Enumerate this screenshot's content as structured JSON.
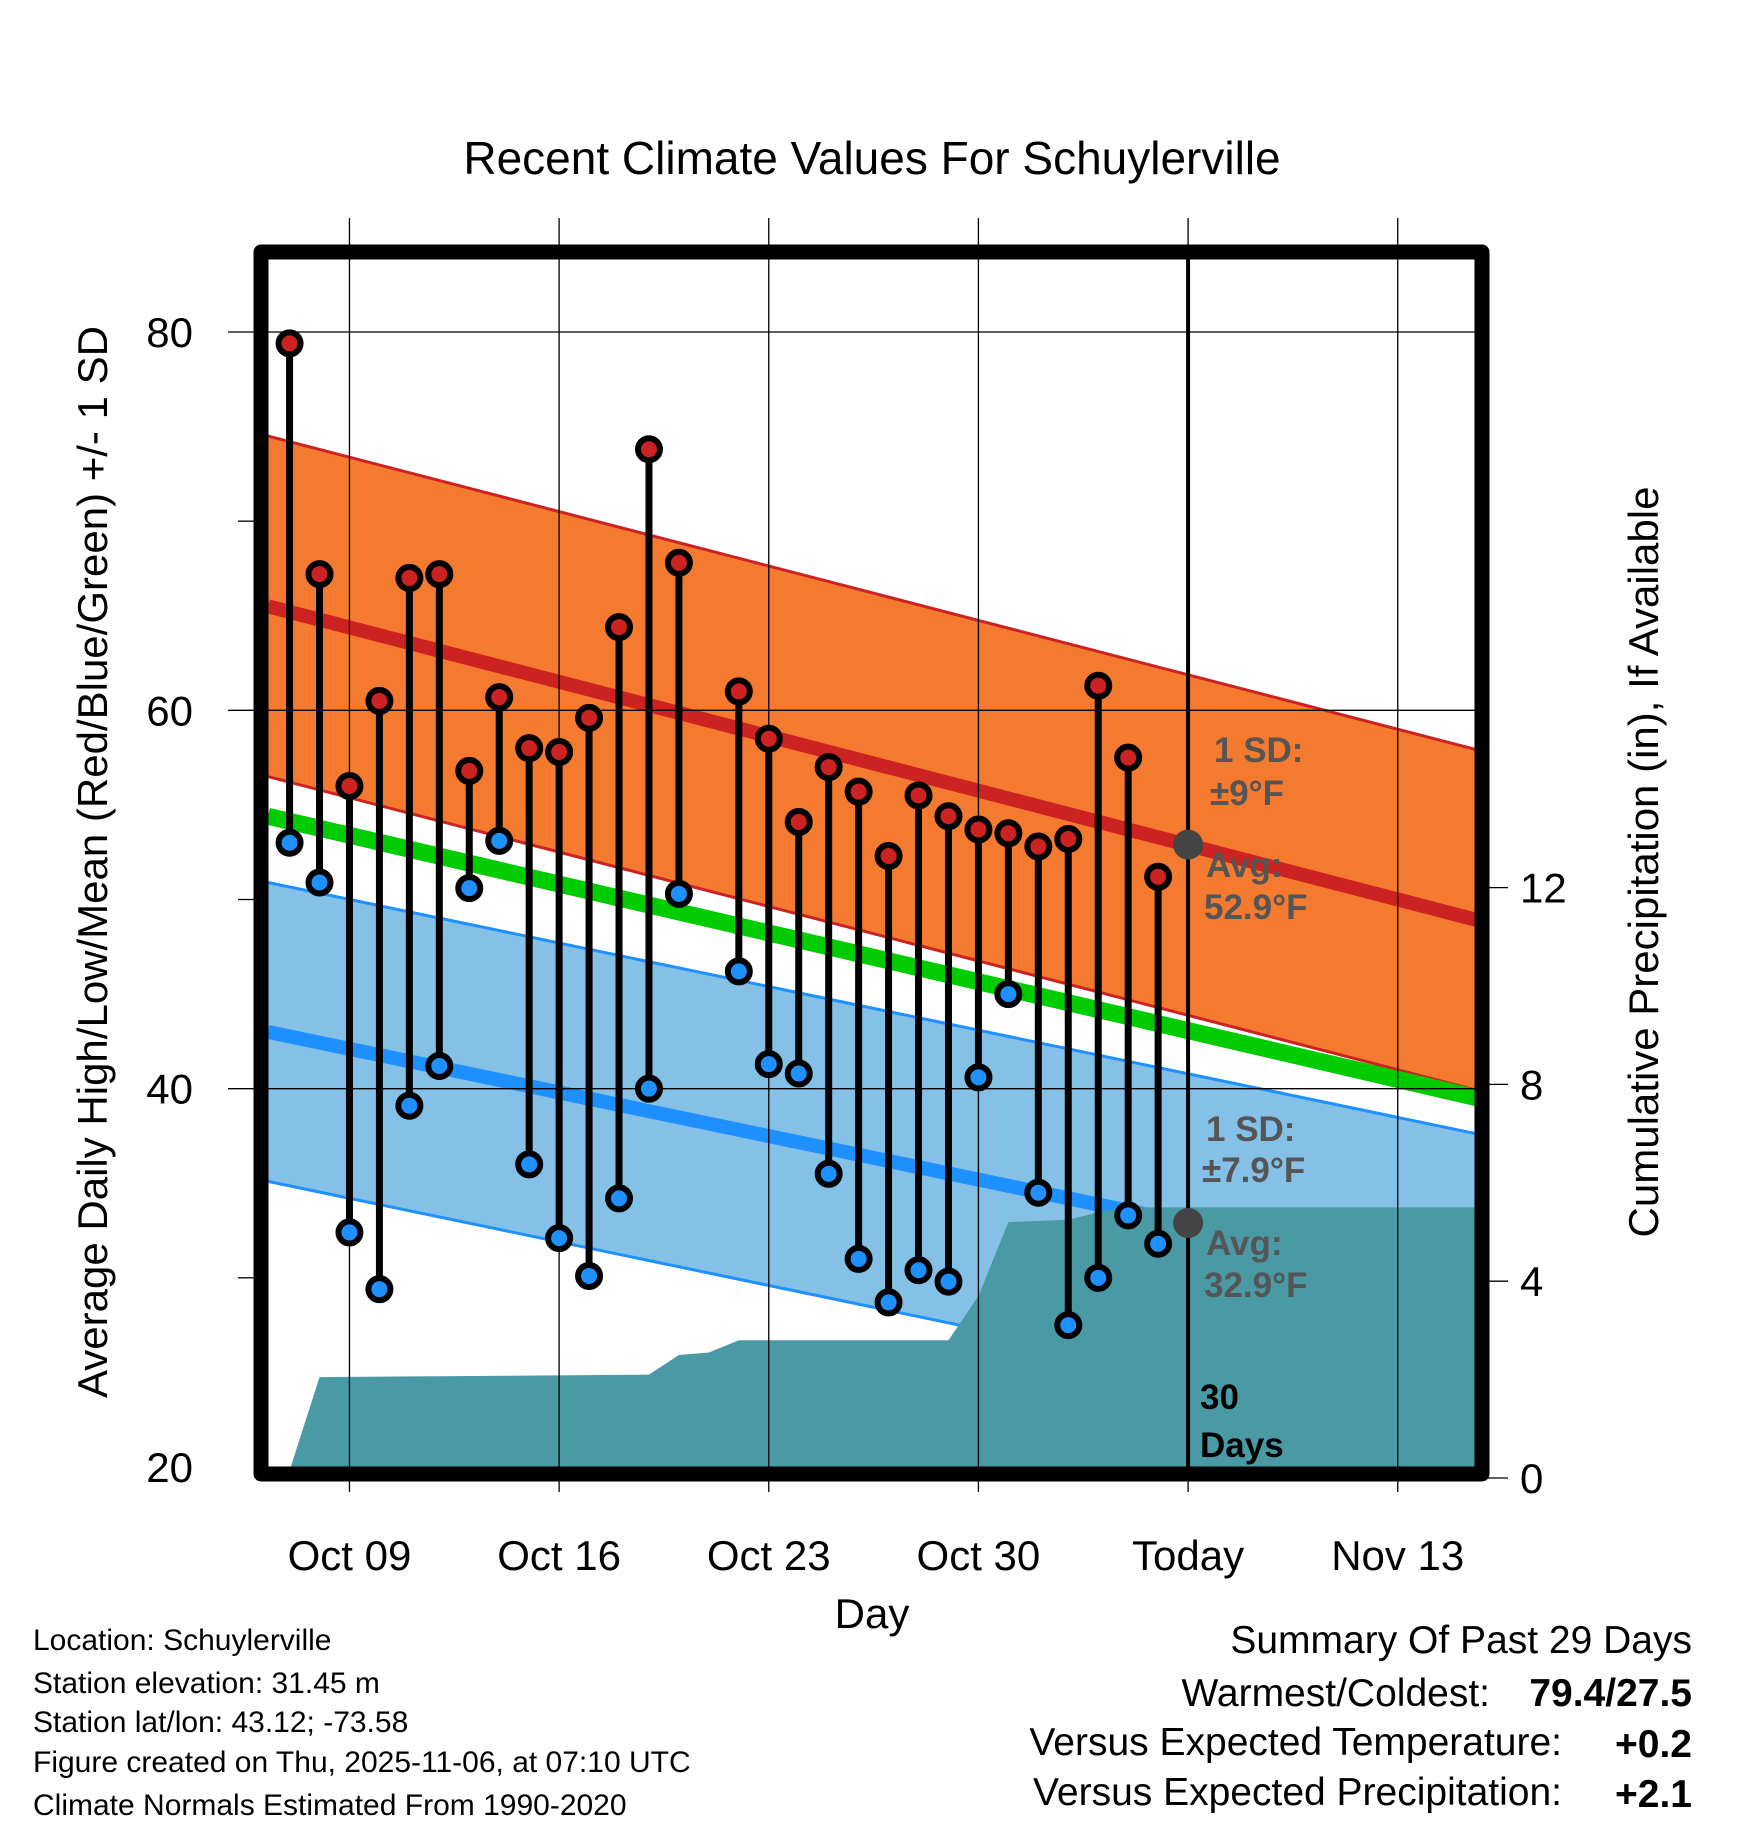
{
  "chart_data": {
    "type": "line",
    "title": "Recent Climate Values For Schuylerville",
    "xlabel": "Day",
    "ylabel": "Average Daily High/Low/Mean (Red/Blue/Green) +/- 1 SD",
    "y2label": "Cumulative Precipitation (in), If Available",
    "ylim": [
      20,
      80
    ],
    "y_ticks": [
      "20",
      "40",
      "60",
      "80"
    ],
    "y2_ticks": [
      "0",
      "4",
      "8",
      "12"
    ],
    "y2_tick_values": [
      0,
      4,
      8,
      12
    ],
    "x_day_origin": "Oct 09",
    "x_ticks": [
      {
        "label": "Oct 09",
        "day": 0
      },
      {
        "label": "Oct 16",
        "day": 7
      },
      {
        "label": "Oct 23",
        "day": 14
      },
      {
        "label": "Oct 30",
        "day": 21
      },
      {
        "label": "Today",
        "day": 28
      },
      {
        "label": "Nov 13",
        "day": 35
      }
    ],
    "x_range_days": [
      -2.72,
      37.68
    ],
    "grid": true,
    "daily": [
      {
        "date": "Oct 07",
        "day": -2,
        "high": 79.4,
        "low": 53.0
      },
      {
        "date": "Oct 08",
        "day": -1,
        "high": 67.2,
        "low": 50.9
      },
      {
        "date": "Oct 09",
        "day": 0,
        "high": 56.0,
        "low": 32.4
      },
      {
        "date": "Oct 10",
        "day": 1,
        "high": 60.5,
        "low": 29.4
      },
      {
        "date": "Oct 11",
        "day": 2,
        "high": 67.0,
        "low": 39.1
      },
      {
        "date": "Oct 12",
        "day": 3,
        "high": 67.2,
        "low": 41.2
      },
      {
        "date": "Oct 13",
        "day": 4,
        "high": 56.8,
        "low": 50.6
      },
      {
        "date": "Oct 14",
        "day": 5,
        "high": 60.7,
        "low": 53.1
      },
      {
        "date": "Oct 15",
        "day": 6,
        "high": 58.0,
        "low": 36.0
      },
      {
        "date": "Oct 16",
        "day": 7,
        "high": 57.8,
        "low": 32.1
      },
      {
        "date": "Oct 17",
        "day": 8,
        "high": 59.6,
        "low": 30.1
      },
      {
        "date": "Oct 18",
        "day": 9,
        "high": 64.4,
        "low": 34.2
      },
      {
        "date": "Oct 19",
        "day": 10,
        "high": 73.8,
        "low": 40.0
      },
      {
        "date": "Oct 20",
        "day": 11,
        "high": 67.8,
        "low": 50.3
      },
      {
        "date": "Oct 22",
        "day": 13,
        "high": 61.0,
        "low": 46.2
      },
      {
        "date": "Oct 23",
        "day": 14,
        "high": 58.5,
        "low": 41.3
      },
      {
        "date": "Oct 24",
        "day": 15,
        "high": 54.1,
        "low": 40.8
      },
      {
        "date": "Oct 25",
        "day": 16,
        "high": 57.0,
        "low": 35.5
      },
      {
        "date": "Oct 26",
        "day": 17,
        "high": 55.7,
        "low": 31.0
      },
      {
        "date": "Oct 27",
        "day": 18,
        "high": 52.3,
        "low": 28.7
      },
      {
        "date": "Oct 28",
        "day": 19,
        "high": 55.5,
        "low": 30.4
      },
      {
        "date": "Oct 29",
        "day": 20,
        "high": 54.4,
        "low": 29.8
      },
      {
        "date": "Oct 30",
        "day": 21,
        "high": 53.7,
        "low": 40.6
      },
      {
        "date": "Oct 31",
        "day": 22,
        "high": 53.5,
        "low": 45.0
      },
      {
        "date": "Nov 01",
        "day": 23,
        "high": 52.8,
        "low": 34.5
      },
      {
        "date": "Nov 02",
        "day": 24,
        "high": 53.2,
        "low": 27.5
      },
      {
        "date": "Nov 03",
        "day": 25,
        "high": 61.3,
        "low": 30.0
      },
      {
        "date": "Nov 04",
        "day": 26,
        "high": 57.5,
        "low": 33.3
      },
      {
        "date": "Nov 05",
        "day": 27,
        "high": 51.2,
        "low": 31.8
      }
    ],
    "normals": {
      "high_avg": [
        65.5,
        48.9
      ],
      "high_sd": 9.0,
      "low_avg": [
        43.0,
        29.7
      ],
      "low_sd": 7.9,
      "mean": [
        54.4,
        39.5
      ]
    },
    "precip_cumulative": [
      {
        "day": -2.72,
        "value": 0.0
      },
      {
        "day": -2,
        "value": 0.15
      },
      {
        "day": -1,
        "value": 2.05
      },
      {
        "day": 10,
        "value": 2.1
      },
      {
        "day": 11,
        "value": 2.5
      },
      {
        "day": 12,
        "value": 2.55
      },
      {
        "day": 13,
        "value": 2.8
      },
      {
        "day": 20,
        "value": 2.8
      },
      {
        "day": 21,
        "value": 3.7
      },
      {
        "day": 22,
        "value": 5.2
      },
      {
        "day": 24,
        "value": 5.25
      },
      {
        "day": 25,
        "value": 5.4
      },
      {
        "day": 26,
        "value": 5.5
      },
      {
        "day": 37.68,
        "value": 5.5
      }
    ],
    "annotations": {
      "high_sd_label": "1 SD:",
      "high_sd_value": "±9°F",
      "high_avg_label": "Avg:",
      "high_avg_value": "52.9°F",
      "high_avg_today": 52.9,
      "low_sd_label": "1 SD:",
      "low_sd_value": "±7.9°F",
      "low_avg_label": "Avg:",
      "low_avg_value": "32.9°F",
      "low_avg_today": 32.9,
      "window_line1": "30",
      "window_line2": "Days"
    },
    "colors": {
      "high_band": "#f47a30",
      "high_line": "#cc2222",
      "low_band": "#85c0e6",
      "low_line": "#1e90ff",
      "mean_line": "#00cc00",
      "precip": "#4a9aa5",
      "high_dot": "#cc2222",
      "low_dot": "#1e90ff"
    }
  },
  "footer": {
    "location": "Location: Schuylerville",
    "elevation": "Station elevation: 31.45 m",
    "latlon": "Station lat/lon: 43.12; -73.58",
    "created": "Figure created on Thu, 2025-11-06, at 07:10 UTC",
    "normals": "Climate Normals Estimated From 1990-2020"
  },
  "summary": {
    "title": "Summary Of Past 29 Days",
    "warm_cold_label": "Warmest/Coldest:",
    "warm_cold_value": "79.4/27.5",
    "temp_label": "Versus Expected Temperature:",
    "temp_value": "+0.2",
    "temp_color": "#cc2222",
    "precip_label": "Versus Expected Precipitation:",
    "precip_value": "+2.1",
    "precip_color": "#22bb22"
  }
}
